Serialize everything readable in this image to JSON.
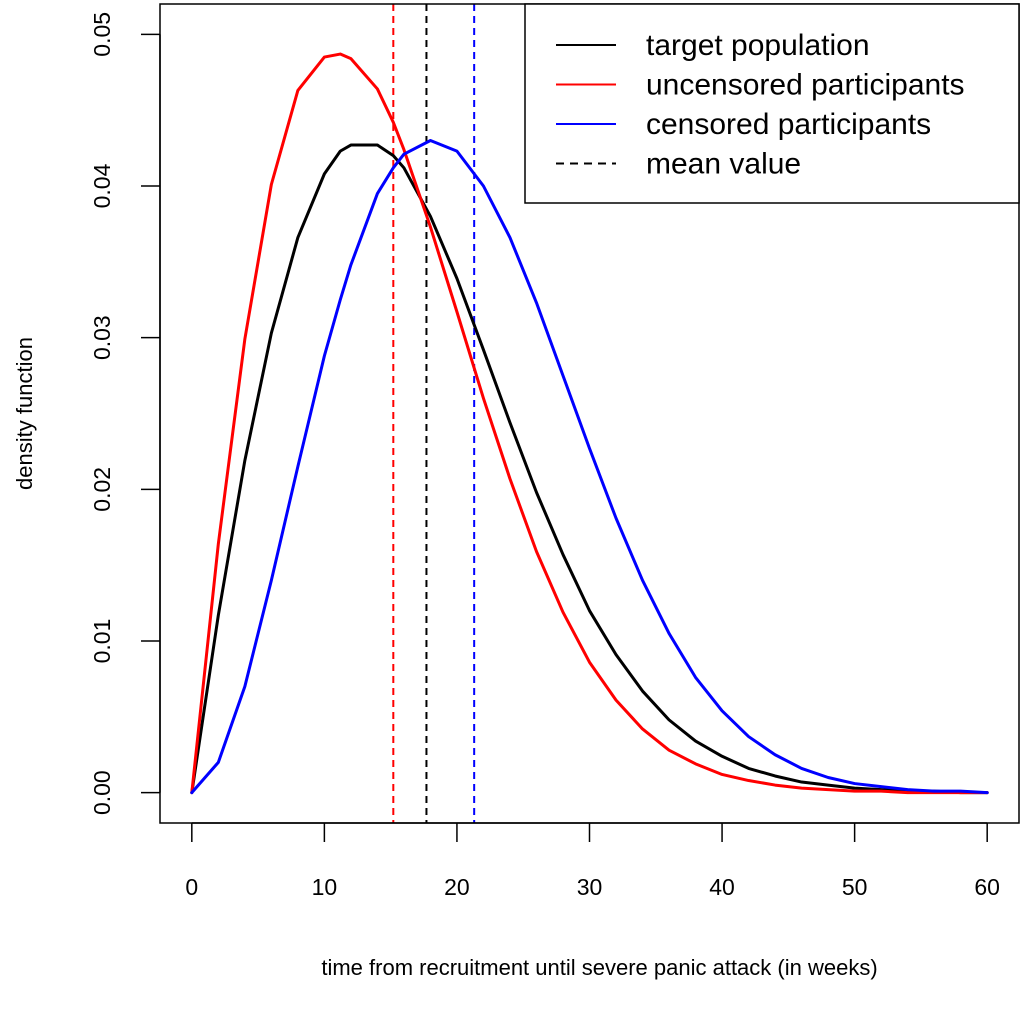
{
  "chart_data": {
    "type": "line",
    "title": "",
    "xlabel": "time from recruitment until severe panic attack (in weeks)",
    "ylabel": "density function",
    "xlim": [
      -2.4,
      62.4
    ],
    "ylim": [
      -0.002,
      0.052
    ],
    "x_ticks": [
      0,
      10,
      20,
      30,
      40,
      50,
      60
    ],
    "y_ticks": [
      0.0,
      0.01,
      0.02,
      0.03,
      0.04,
      0.05
    ],
    "x_tick_labels": [
      "0",
      "10",
      "20",
      "30",
      "40",
      "50",
      "60"
    ],
    "y_tick_labels": [
      "0.00",
      "0.01",
      "0.02",
      "0.03",
      "0.04",
      "0.05"
    ],
    "grid": false,
    "legend_position": "top-right",
    "x": [
      0,
      2,
      4,
      6,
      8,
      10,
      11.2,
      12,
      14,
      15.2,
      16,
      18,
      20,
      22,
      24,
      26,
      28,
      30,
      32,
      34,
      36,
      38,
      40,
      42,
      44,
      46,
      48,
      50,
      52,
      54,
      56,
      58,
      60
    ],
    "series": [
      {
        "name": "target population",
        "color": "#000000",
        "values": [
          0.0,
          0.0117,
          0.0219,
          0.0303,
          0.0366,
          0.0408,
          0.0423,
          0.0427,
          0.0427,
          0.042,
          0.0412,
          0.038,
          0.0339,
          0.0292,
          0.0244,
          0.0198,
          0.0157,
          0.012,
          0.0091,
          0.0067,
          0.0048,
          0.0034,
          0.0024,
          0.0016,
          0.0011,
          0.0007,
          0.0005,
          0.0003,
          0.0002,
          0.0001,
          0.0001,
          0.0,
          0.0
        ]
      },
      {
        "name": "uncensored participants",
        "color": "#ff0000",
        "values": [
          0.0,
          0.0164,
          0.0299,
          0.0401,
          0.0463,
          0.0485,
          0.0487,
          0.0484,
          0.0464,
          0.0442,
          0.0424,
          0.0373,
          0.0317,
          0.026,
          0.0207,
          0.0159,
          0.0119,
          0.0086,
          0.0061,
          0.0042,
          0.0028,
          0.0019,
          0.0012,
          0.0008,
          0.0005,
          0.0003,
          0.0002,
          0.0001,
          0.0001,
          0.0,
          0.0,
          0.0,
          0.0
        ]
      },
      {
        "name": "censored participants",
        "color": "#0000ff",
        "values": [
          0.0,
          0.002,
          0.007,
          0.014,
          0.0215,
          0.0288,
          0.0325,
          0.0348,
          0.0395,
          0.0412,
          0.0421,
          0.043,
          0.0423,
          0.04,
          0.0366,
          0.0323,
          0.0275,
          0.0227,
          0.0181,
          0.014,
          0.0105,
          0.0076,
          0.0054,
          0.0037,
          0.0025,
          0.0016,
          0.001,
          0.0006,
          0.0004,
          0.0002,
          0.0001,
          0.0001,
          0.0
        ]
      }
    ],
    "mean_lines": [
      {
        "series": "target population",
        "x": 17.7,
        "color": "#000000"
      },
      {
        "series": "uncensored participants",
        "x": 15.2,
        "color": "#ff0000"
      },
      {
        "series": "censored participants",
        "x": 21.3,
        "color": "#0000ff"
      }
    ],
    "legend": [
      {
        "label": "target population",
        "color": "#000000",
        "dash": false
      },
      {
        "label": "uncensored participants",
        "color": "#ff0000",
        "dash": false
      },
      {
        "label": "censored participants",
        "color": "#0000ff",
        "dash": false
      },
      {
        "label": "mean value",
        "color": "#000000",
        "dash": true
      }
    ]
  }
}
